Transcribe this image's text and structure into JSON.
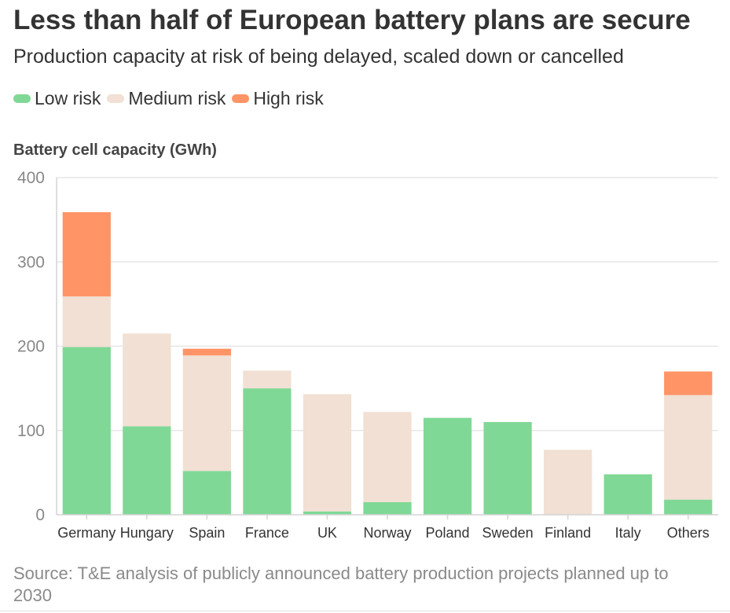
{
  "title": "Less than half of European battery plans are secure",
  "subtitle": "Production capacity at risk of being delayed, scaled down or cancelled",
  "legend": [
    {
      "label": "Low risk",
      "color": "#80d896"
    },
    {
      "label": "Medium risk",
      "color": "#f1e0d3"
    },
    {
      "label": "High risk",
      "color": "#ff9466"
    }
  ],
  "source": "Source: T&E analysis of publicly announced battery production projects planned up to 2030",
  "chart_data": {
    "type": "bar",
    "stacked": true,
    "title": "Less than half of European battery plans are secure",
    "subtitle": "Production capacity at risk of being delayed, scaled down or cancelled",
    "ylabel": "Battery cell capacity (GWh)",
    "xlabel": "",
    "ylim": [
      0,
      400
    ],
    "yticks": [
      0,
      100,
      200,
      300,
      400
    ],
    "grid": true,
    "legend_position": "top-left",
    "categories": [
      "Germany",
      "Hungary",
      "Spain",
      "France",
      "UK",
      "Norway",
      "Poland",
      "Sweden",
      "Finland",
      "Italy",
      "Others"
    ],
    "series": [
      {
        "name": "Low risk",
        "color": "#80d896",
        "values": [
          199,
          105,
          52,
          150,
          4,
          15,
          115,
          110,
          0,
          48,
          18
        ]
      },
      {
        "name": "Medium risk",
        "color": "#f1e0d3",
        "values": [
          60,
          110,
          137,
          21,
          139,
          107,
          0,
          0,
          77,
          0,
          124
        ]
      },
      {
        "name": "High risk",
        "color": "#ff9466",
        "values": [
          100,
          0,
          8,
          0,
          0,
          0,
          0,
          0,
          0,
          0,
          28
        ]
      }
    ]
  }
}
